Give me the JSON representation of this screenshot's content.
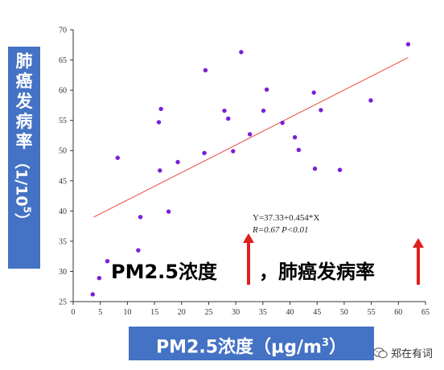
{
  "chart_data": {
    "type": "scatter",
    "xlabel_main": "PM2.5浓度",
    "xlabel_unit": "（µg/m",
    "xlabel_sup": "3",
    "xlabel_end": "）",
    "ylabel_chars": [
      "肺",
      "癌",
      "发",
      "病",
      "率"
    ],
    "ylabel_unit_pre": "（1/10",
    "ylabel_unit_sup": "5",
    "ylabel_unit_post": "）",
    "xlim": [
      0,
      65
    ],
    "ylim": [
      25,
      70
    ],
    "x_ticks": [
      0,
      5,
      10,
      15,
      20,
      25,
      30,
      35,
      40,
      45,
      50,
      55,
      60,
      65
    ],
    "y_ticks": [
      25,
      30,
      35,
      40,
      45,
      50,
      55,
      60,
      65,
      70
    ],
    "points": [
      {
        "x": 3.6,
        "y": 26.2
      },
      {
        "x": 4.8,
        "y": 28.9
      },
      {
        "x": 6.3,
        "y": 31.7
      },
      {
        "x": 8.2,
        "y": 48.8
      },
      {
        "x": 12.0,
        "y": 33.5
      },
      {
        "x": 12.4,
        "y": 39.0
      },
      {
        "x": 15.8,
        "y": 54.7
      },
      {
        "x": 16.0,
        "y": 46.7
      },
      {
        "x": 16.2,
        "y": 56.9
      },
      {
        "x": 17.6,
        "y": 39.9
      },
      {
        "x": 19.3,
        "y": 48.1
      },
      {
        "x": 24.2,
        "y": 49.6
      },
      {
        "x": 24.4,
        "y": 63.3
      },
      {
        "x": 27.9,
        "y": 56.6
      },
      {
        "x": 28.6,
        "y": 55.3
      },
      {
        "x": 29.5,
        "y": 49.9
      },
      {
        "x": 31.0,
        "y": 66.3
      },
      {
        "x": 32.6,
        "y": 52.7
      },
      {
        "x": 35.1,
        "y": 56.6
      },
      {
        "x": 35.7,
        "y": 60.1
      },
      {
        "x": 38.6,
        "y": 54.6
      },
      {
        "x": 40.9,
        "y": 52.2
      },
      {
        "x": 41.6,
        "y": 50.1
      },
      {
        "x": 44.4,
        "y": 59.6
      },
      {
        "x": 44.6,
        "y": 47.0
      },
      {
        "x": 45.7,
        "y": 56.7
      },
      {
        "x": 49.2,
        "y": 46.8
      },
      {
        "x": 54.9,
        "y": 58.3
      },
      {
        "x": 61.8,
        "y": 67.6
      }
    ],
    "fit_line": {
      "x0": 3.8,
      "y0": 39.0,
      "x1": 61.8,
      "y1": 65.4
    },
    "equation": "Y=37.33+0.454*X",
    "stats": "R=0.67 P<0.01",
    "point_color": "#7a1fd6",
    "line_color": "#e8493f",
    "grid": false
  },
  "annotation": {
    "left_text": "PM2.5浓度",
    "right_text": "，肺癌发病率",
    "arrow_color": "#e0201c"
  },
  "watermark": {
    "text": "郑在有词",
    "icon": "wechat-icon"
  }
}
